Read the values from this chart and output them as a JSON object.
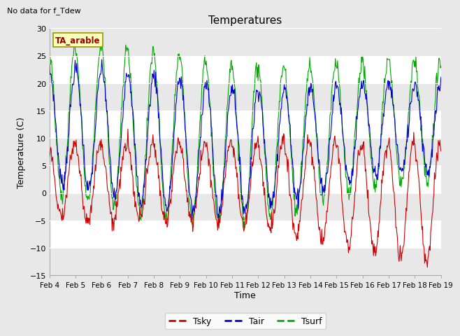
{
  "title": "Temperatures",
  "xlabel": "Time",
  "ylabel": "Temperature (C)",
  "note": "No data for f_Tdew",
  "box_label": "TA_arable",
  "ylim": [
    -15,
    30
  ],
  "yticks": [
    -15,
    -10,
    -5,
    0,
    5,
    10,
    15,
    20,
    25,
    30
  ],
  "xtick_labels": [
    "Feb 4",
    "Feb 5",
    "Feb 6",
    "Feb 7",
    "Feb 8",
    "Feb 9",
    "Feb 10",
    "Feb 11",
    "Feb 12",
    "Feb 13",
    "Feb 14",
    "Feb 15",
    "Feb 16",
    "Feb 17",
    "Feb 18",
    "Feb 19"
  ],
  "n_xticks": 16,
  "colors": {
    "Tsky": "#cc0000",
    "Tair": "#0000cc",
    "Tsurf": "#00aa00"
  },
  "band_color": "#e8e8e8",
  "plot_bg_color": "#ffffff",
  "fig_bg_color": "#e8e8e8",
  "grid_color": "#cccccc"
}
